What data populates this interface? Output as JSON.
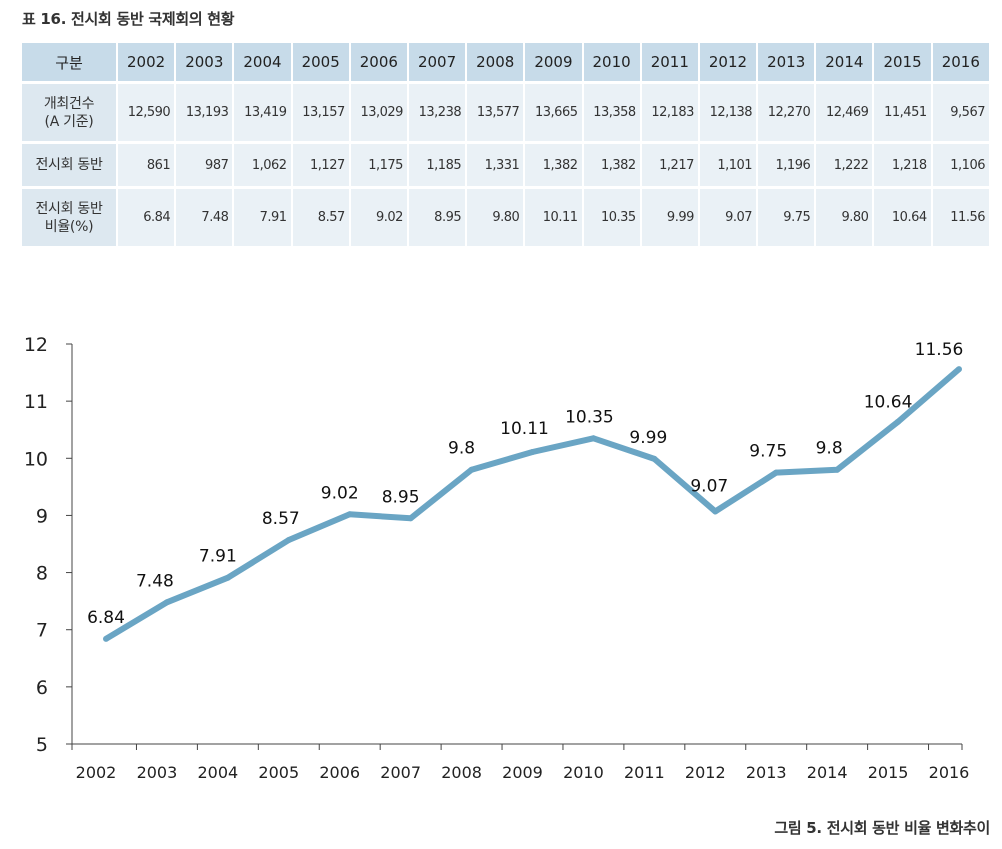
{
  "table": {
    "caption": "표 16. 전시회 동반 국제회의 현황",
    "header_label": "구분",
    "years": [
      "2002",
      "2003",
      "2004",
      "2005",
      "2006",
      "2007",
      "2008",
      "2009",
      "2010",
      "2011",
      "2012",
      "2013",
      "2014",
      "2015",
      "2016"
    ],
    "rows": [
      {
        "label_line1": "개최건수",
        "label_line2": "(A 기준)",
        "values": [
          "12,590",
          "13,193",
          "13,419",
          "13,157",
          "13,029",
          "13,238",
          "13,577",
          "13,665",
          "13,358",
          "12,183",
          "12,138",
          "12,270",
          "12,469",
          "11,451",
          "9,567"
        ]
      },
      {
        "label_line1": "전시회 동반",
        "label_line2": "",
        "values": [
          "861",
          "987",
          "1,062",
          "1,127",
          "1,175",
          "1,185",
          "1,331",
          "1,382",
          "1,382",
          "1,217",
          "1,101",
          "1,196",
          "1,222",
          "1,218",
          "1,106"
        ]
      },
      {
        "label_line1": "전시회 동반",
        "label_line2": "비율(%)",
        "values": [
          "6.84",
          "7.48",
          "7.91",
          "8.57",
          "9.02",
          "8.95",
          "9.80",
          "10.11",
          "10.35",
          "9.99",
          "9.07",
          "9.75",
          "9.80",
          "10.64",
          "11.56"
        ]
      }
    ]
  },
  "chart_data": {
    "type": "line",
    "title": "그림 5. 전시회 동반 비율 변화추이",
    "xlabel": "",
    "ylabel": "",
    "categories": [
      "2002",
      "2003",
      "2004",
      "2005",
      "2006",
      "2007",
      "2008",
      "2009",
      "2010",
      "2011",
      "2012",
      "2013",
      "2014",
      "2015",
      "2016"
    ],
    "series": [
      {
        "values": [
          6.84,
          7.48,
          7.91,
          8.57,
          9.02,
          8.95,
          9.8,
          10.11,
          10.35,
          9.99,
          9.07,
          9.75,
          9.8,
          10.64,
          11.56
        ],
        "labels": [
          "6.84",
          "7.48",
          "7.91",
          "8.57",
          "9.02",
          "8.95",
          "9.8",
          "10.11",
          "10.35",
          "9.99",
          "9.07",
          "9.75",
          "9.8",
          "10.64",
          "11.56"
        ]
      }
    ],
    "ylim": [
      5,
      12
    ],
    "yticks": [
      5,
      6,
      7,
      8,
      9,
      10,
      11,
      12
    ],
    "grid": false,
    "legend": "none",
    "line_color": "#6aa5c4"
  }
}
